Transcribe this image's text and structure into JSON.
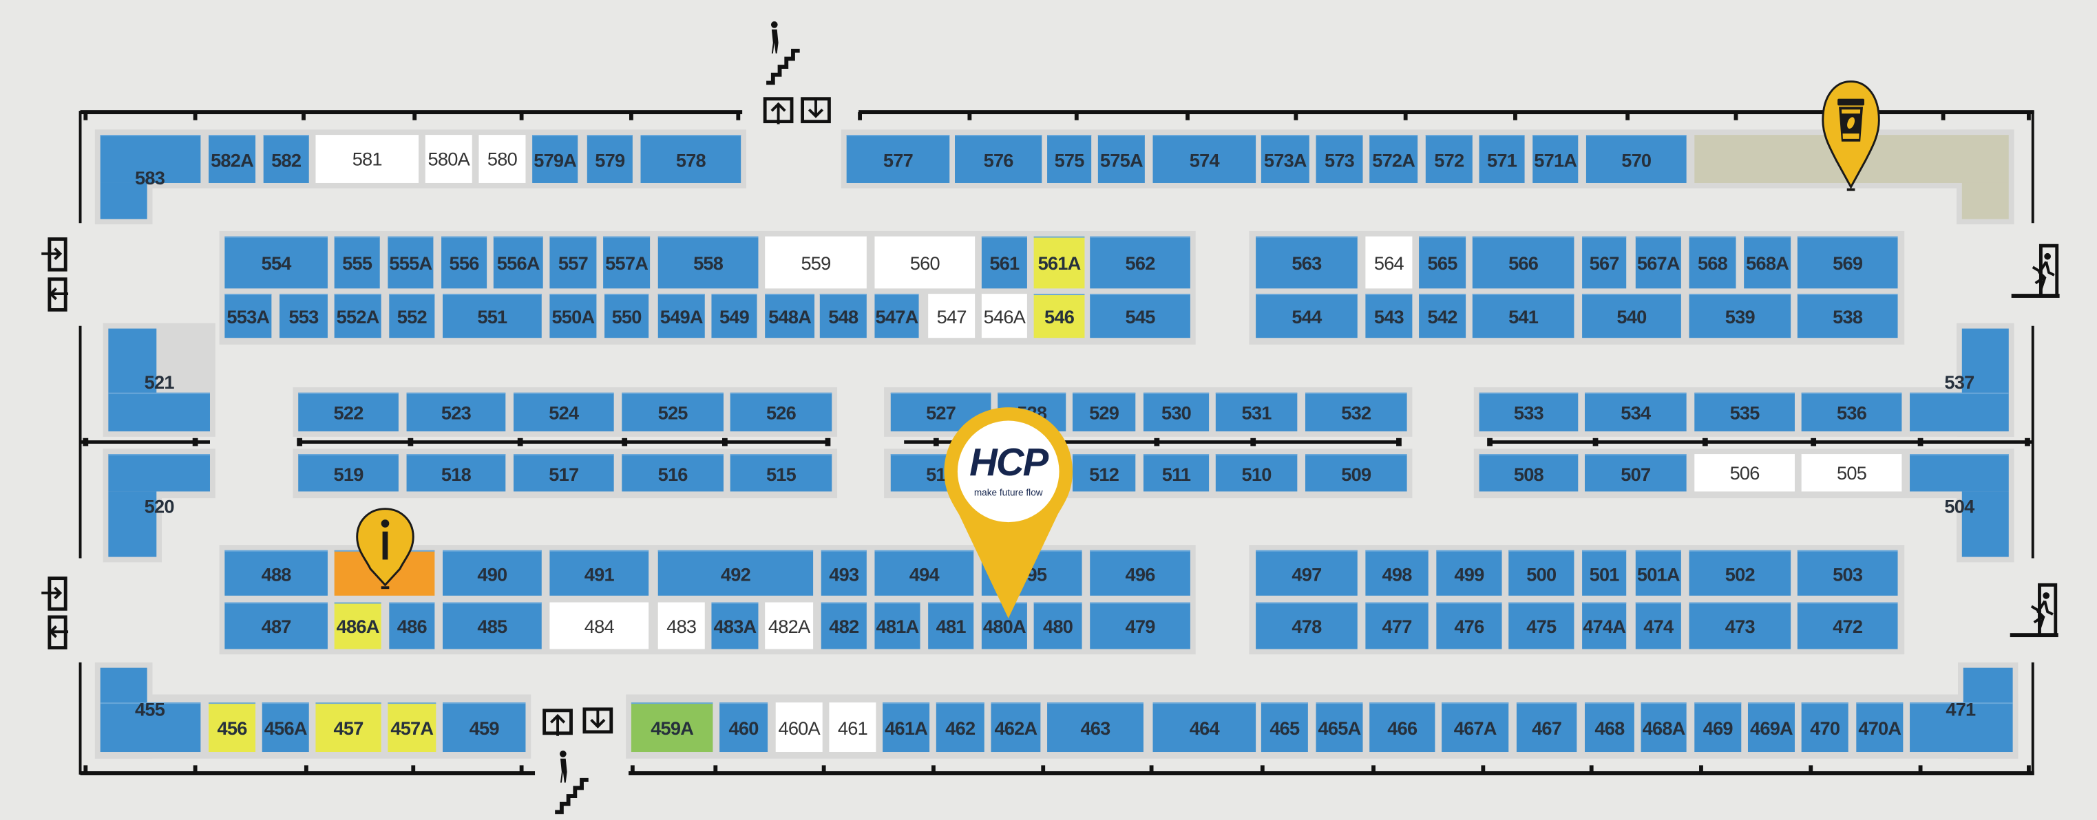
{
  "status_colors": {
    "blue": "#3f8fce",
    "white": "#ffffff",
    "yellow": "#e8e84a",
    "orange": "#f39c28",
    "green": "#8dc45a",
    "cafe": "#cccbb4",
    "pin": "#efb91f"
  },
  "map": {
    "rows": [
      [
        {
          "label": "583",
          "status": "blue"
        },
        {
          "label": "582A",
          "status": "blue"
        },
        {
          "label": "582",
          "status": "blue"
        },
        {
          "label": "581",
          "status": "white"
        },
        {
          "label": "580A",
          "status": "white"
        },
        {
          "label": "580",
          "status": "white"
        },
        {
          "label": "579A",
          "status": "blue"
        },
        {
          "label": "579",
          "status": "blue"
        },
        {
          "label": "578",
          "status": "blue"
        }
      ],
      [
        {
          "label": "577",
          "status": "blue"
        },
        {
          "label": "576",
          "status": "blue"
        },
        {
          "label": "575",
          "status": "blue"
        },
        {
          "label": "575A",
          "status": "blue"
        },
        {
          "label": "574",
          "status": "blue"
        },
        {
          "label": "573A",
          "status": "blue"
        },
        {
          "label": "573",
          "status": "blue"
        },
        {
          "label": "572A",
          "status": "blue"
        },
        {
          "label": "572",
          "status": "blue"
        },
        {
          "label": "571",
          "status": "blue"
        },
        {
          "label": "571A",
          "status": "blue"
        },
        {
          "label": "570",
          "status": "blue"
        }
      ],
      [
        {
          "label": "554",
          "status": "blue"
        },
        {
          "label": "555",
          "status": "blue"
        },
        {
          "label": "555A",
          "status": "blue"
        },
        {
          "label": "556",
          "status": "blue"
        },
        {
          "label": "556A",
          "status": "blue"
        },
        {
          "label": "557",
          "status": "blue"
        },
        {
          "label": "557A",
          "status": "blue"
        },
        {
          "label": "558",
          "status": "blue"
        },
        {
          "label": "559",
          "status": "white"
        },
        {
          "label": "560",
          "status": "white"
        },
        {
          "label": "561",
          "status": "blue"
        },
        {
          "label": "561A",
          "status": "yellow"
        },
        {
          "label": "562",
          "status": "blue"
        },
        {
          "label": "563",
          "status": "blue"
        },
        {
          "label": "564",
          "status": "white"
        },
        {
          "label": "565",
          "status": "blue"
        },
        {
          "label": "566",
          "status": "blue"
        },
        {
          "label": "567",
          "status": "blue"
        },
        {
          "label": "567A",
          "status": "blue"
        },
        {
          "label": "568",
          "status": "blue"
        },
        {
          "label": "568A",
          "status": "blue"
        },
        {
          "label": "569",
          "status": "blue"
        }
      ],
      [
        {
          "label": "553A",
          "status": "blue"
        },
        {
          "label": "553",
          "status": "blue"
        },
        {
          "label": "552A",
          "status": "blue"
        },
        {
          "label": "552",
          "status": "blue"
        },
        {
          "label": "551",
          "status": "blue"
        },
        {
          "label": "550A",
          "status": "blue"
        },
        {
          "label": "550",
          "status": "blue"
        },
        {
          "label": "549A",
          "status": "blue"
        },
        {
          "label": "549",
          "status": "blue"
        },
        {
          "label": "548A",
          "status": "blue"
        },
        {
          "label": "548",
          "status": "blue"
        },
        {
          "label": "547A",
          "status": "blue"
        },
        {
          "label": "547",
          "status": "white"
        },
        {
          "label": "546A",
          "status": "white"
        },
        {
          "label": "546",
          "status": "yellow"
        },
        {
          "label": "545",
          "status": "blue"
        },
        {
          "label": "544",
          "status": "blue"
        },
        {
          "label": "543",
          "status": "blue"
        },
        {
          "label": "542",
          "status": "blue"
        },
        {
          "label": "541",
          "status": "blue"
        },
        {
          "label": "540",
          "status": "blue"
        },
        {
          "label": "539",
          "status": "blue"
        },
        {
          "label": "538",
          "status": "blue"
        }
      ],
      [
        {
          "label": "521",
          "status": "blue"
        },
        {
          "label": "522",
          "status": "blue"
        },
        {
          "label": "523",
          "status": "blue"
        },
        {
          "label": "524",
          "status": "blue"
        },
        {
          "label": "525",
          "status": "blue"
        },
        {
          "label": "526",
          "status": "blue"
        },
        {
          "label": "527",
          "status": "blue"
        },
        {
          "label": "528",
          "status": "blue"
        },
        {
          "label": "529",
          "status": "blue"
        },
        {
          "label": "530",
          "status": "blue"
        },
        {
          "label": "531",
          "status": "blue"
        },
        {
          "label": "532",
          "status": "blue"
        },
        {
          "label": "533",
          "status": "blue"
        },
        {
          "label": "534",
          "status": "blue"
        },
        {
          "label": "535",
          "status": "blue"
        },
        {
          "label": "536",
          "status": "blue"
        },
        {
          "label": "537",
          "status": "blue"
        }
      ],
      [
        {
          "label": "520",
          "status": "blue"
        },
        {
          "label": "519",
          "status": "blue"
        },
        {
          "label": "518",
          "status": "blue"
        },
        {
          "label": "517",
          "status": "blue"
        },
        {
          "label": "516",
          "status": "blue"
        },
        {
          "label": "515",
          "status": "blue"
        },
        {
          "label": "514",
          "status": "blue"
        },
        {
          "label": "",
          "status": "blue"
        },
        {
          "label": "512",
          "status": "blue"
        },
        {
          "label": "511",
          "status": "blue"
        },
        {
          "label": "510",
          "status": "blue"
        },
        {
          "label": "509",
          "status": "blue"
        },
        {
          "label": "508",
          "status": "blue"
        },
        {
          "label": "507",
          "status": "blue"
        },
        {
          "label": "506",
          "status": "white"
        },
        {
          "label": "505",
          "status": "white"
        },
        {
          "label": "504",
          "status": "blue"
        }
      ],
      [
        {
          "label": "488",
          "status": "blue"
        },
        {
          "label": "",
          "status": "orange"
        },
        {
          "label": "490",
          "status": "blue"
        },
        {
          "label": "491",
          "status": "blue"
        },
        {
          "label": "492",
          "status": "blue"
        },
        {
          "label": "493",
          "status": "blue"
        },
        {
          "label": "494",
          "status": "blue"
        },
        {
          "label": "495",
          "status": "blue"
        },
        {
          "label": "496",
          "status": "blue"
        },
        {
          "label": "497",
          "status": "blue"
        },
        {
          "label": "498",
          "status": "blue"
        },
        {
          "label": "499",
          "status": "blue"
        },
        {
          "label": "500",
          "status": "blue"
        },
        {
          "label": "501",
          "status": "blue"
        },
        {
          "label": "501A",
          "status": "blue"
        },
        {
          "label": "502",
          "status": "blue"
        },
        {
          "label": "503",
          "status": "blue"
        }
      ],
      [
        {
          "label": "487",
          "status": "blue"
        },
        {
          "label": "486A",
          "status": "yellow"
        },
        {
          "label": "486",
          "status": "blue"
        },
        {
          "label": "485",
          "status": "blue"
        },
        {
          "label": "484",
          "status": "white"
        },
        {
          "label": "483",
          "status": "white"
        },
        {
          "label": "483A",
          "status": "blue"
        },
        {
          "label": "482A",
          "status": "white"
        },
        {
          "label": "482",
          "status": "blue"
        },
        {
          "label": "481A",
          "status": "blue"
        },
        {
          "label": "481",
          "status": "blue"
        },
        {
          "label": "480A",
          "status": "blue"
        },
        {
          "label": "480",
          "status": "blue"
        },
        {
          "label": "479",
          "status": "blue"
        },
        {
          "label": "478",
          "status": "blue"
        },
        {
          "label": "477",
          "status": "blue"
        },
        {
          "label": "476",
          "status": "blue"
        },
        {
          "label": "475",
          "status": "blue"
        },
        {
          "label": "474A",
          "status": "blue"
        },
        {
          "label": "474",
          "status": "blue"
        },
        {
          "label": "473",
          "status": "blue"
        },
        {
          "label": "472",
          "status": "blue"
        }
      ],
      [
        {
          "label": "455",
          "status": "blue"
        },
        {
          "label": "456",
          "status": "yellow"
        },
        {
          "label": "456A",
          "status": "blue"
        },
        {
          "label": "457",
          "status": "yellow"
        },
        {
          "label": "457A",
          "status": "yellow"
        },
        {
          "label": "459",
          "status": "blue"
        },
        {
          "label": "459A",
          "status": "green"
        },
        {
          "label": "460",
          "status": "blue"
        },
        {
          "label": "460A",
          "status": "white"
        },
        {
          "label": "461",
          "status": "white"
        },
        {
          "label": "461A",
          "status": "blue"
        },
        {
          "label": "462",
          "status": "blue"
        },
        {
          "label": "462A",
          "status": "blue"
        },
        {
          "label": "463",
          "status": "blue"
        },
        {
          "label": "464",
          "status": "blue"
        },
        {
          "label": "465",
          "status": "blue"
        },
        {
          "label": "465A",
          "status": "blue"
        },
        {
          "label": "466",
          "status": "blue"
        },
        {
          "label": "467A",
          "status": "blue"
        },
        {
          "label": "467",
          "status": "blue"
        },
        {
          "label": "468",
          "status": "blue"
        },
        {
          "label": "468A",
          "status": "blue"
        },
        {
          "label": "469",
          "status": "blue"
        },
        {
          "label": "469A",
          "status": "blue"
        },
        {
          "label": "470",
          "status": "blue"
        },
        {
          "label": "470A",
          "status": "blue"
        },
        {
          "label": "471",
          "status": "blue"
        }
      ]
    ]
  },
  "pins": {
    "info": {
      "icon": "info-icon"
    },
    "cafe": {
      "icon": "coffee-cup-icon"
    },
    "exhibitor": {
      "logo_text": "HCP",
      "tagline": "make future flow"
    }
  },
  "icons": [
    "stairs-icon",
    "escalator-up-icon",
    "escalator-down-icon",
    "entrance-icon",
    "exit-icon",
    "emergency-exit-icon"
  ]
}
